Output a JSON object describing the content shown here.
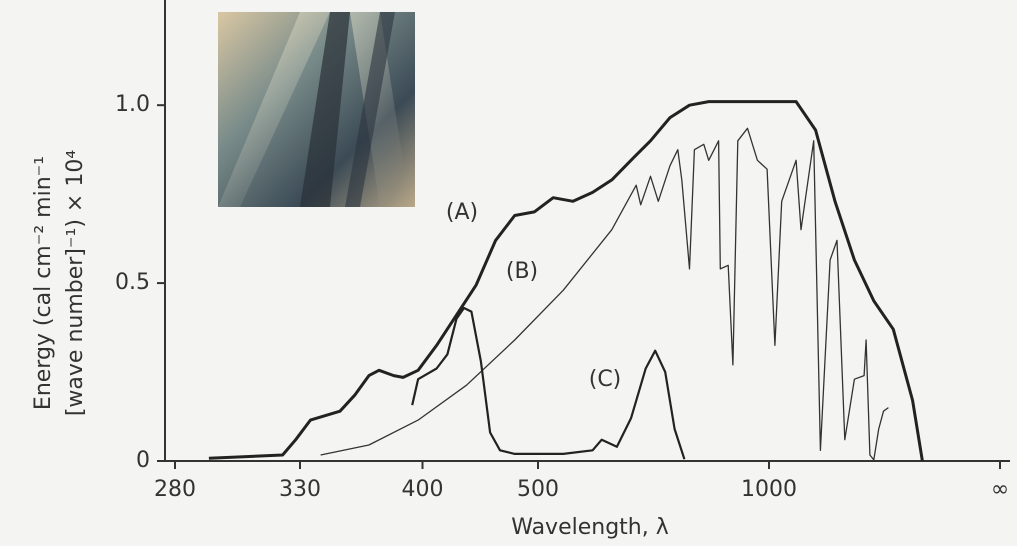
{
  "chart_data": {
    "type": "line",
    "xlabel": "Wavelength, λ",
    "ylabel": [
      "Energy (cal cm⁻² min⁻¹",
      "[wave number]⁻¹) × 10⁴"
    ],
    "xscale": "reciprocal",
    "xlim": [
      280,
      null
    ],
    "xticks": [
      280,
      330,
      400,
      500,
      1000,
      {
        "value": null,
        "label": "∞"
      }
    ],
    "ylim": [
      0,
      1.29
    ],
    "yticks": [
      0,
      0.5,
      {
        "value": 1,
        "label": "1.0"
      }
    ],
    "series": [
      {
        "name": "(A)",
        "color": "#222222",
        "x": [
          292,
          322,
          328,
          335,
          350,
          358,
          366,
          372,
          381,
          387,
          397,
          410,
          425,
          441,
          458,
          476,
          496,
          517,
          541,
          567,
          595,
          626,
          661,
          700,
          744,
          793,
          952,
          1133,
          1253,
          1400,
          1587,
          1831,
          2164,
          2644,
          2975
        ],
        "values": [
          0.008,
          0.017,
          0.06,
          0.115,
          0.14,
          0.185,
          0.24,
          0.255,
          0.24,
          0.235,
          0.255,
          0.325,
          0.41,
          0.495,
          0.62,
          0.69,
          0.7,
          0.74,
          0.73,
          0.755,
          0.79,
          0.845,
          0.9,
          0.965,
          1.0,
          1.01,
          1.01,
          1.01,
          0.93,
          0.73,
          0.565,
          0.45,
          0.37,
          0.17,
          0
        ]
      },
      {
        "name": "(B)",
        "color": "#333333",
        "x": [
          340,
          366,
          397,
          433,
          476,
          529,
          595,
          635,
          643,
          661,
          676,
          700,
          717,
          726,
          744,
          756,
          780,
          793,
          821,
          826,
          850,
          865,
          881,
          915,
          952,
          992,
          1026,
          1058,
          1133,
          1161,
          1240,
          1286,
          1360,
          1417,
          1488,
          1587,
          1700,
          1725,
          1776,
          1831,
          1904,
          1983,
          2070
        ],
        "values": [
          0.017,
          0.045,
          0.115,
          0.213,
          0.34,
          0.48,
          0.65,
          0.775,
          0.72,
          0.8,
          0.73,
          0.83,
          0.875,
          0.79,
          0.54,
          0.875,
          0.89,
          0.845,
          0.9,
          0.54,
          0.55,
          0.27,
          0.9,
          0.935,
          0.845,
          0.82,
          0.325,
          0.73,
          0.845,
          0.65,
          0.9,
          0.03,
          0.565,
          0.62,
          0.06,
          0.23,
          0.24,
          0.34,
          0.017,
          0.003,
          0.09,
          0.14,
          0.15
        ]
      },
      {
        "name": "(C)",
        "color": "#222222",
        "x": [
          393,
          397,
          410,
          418,
          425,
          431,
          437,
          445,
          453,
          462,
          476,
          529,
          567,
          580,
          603,
          626,
          652,
          670,
          690,
          710,
          732
        ],
        "values": [
          0.157,
          0.23,
          0.26,
          0.3,
          0.4,
          0.43,
          0.42,
          0.28,
          0.08,
          0.03,
          0.02,
          0.02,
          0.03,
          0.06,
          0.04,
          0.12,
          0.26,
          0.31,
          0.25,
          0.09,
          0.005
        ]
      }
    ]
  }
}
